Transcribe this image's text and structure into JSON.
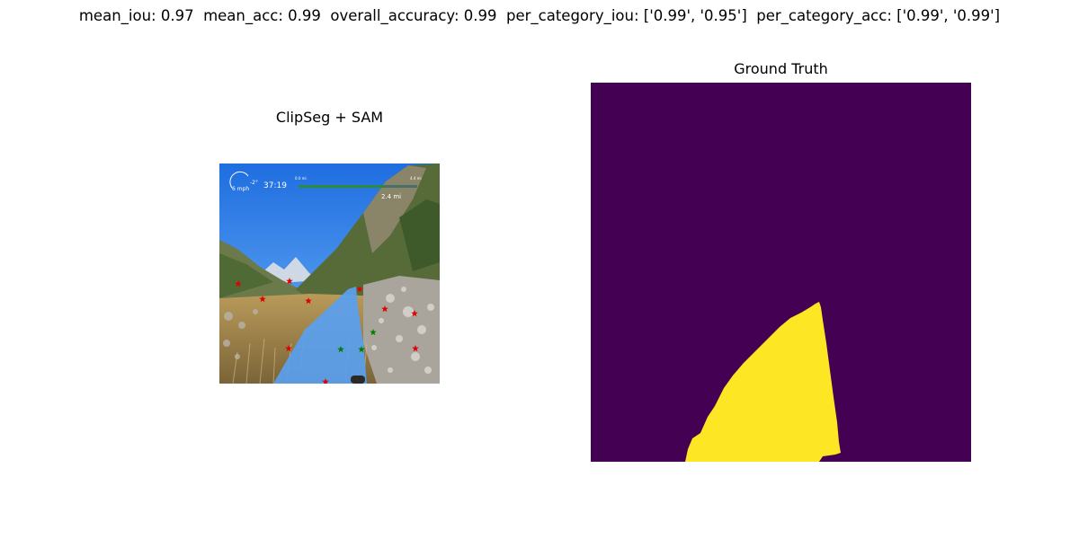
{
  "figure": {
    "suptitle": "mean_iou: 0.97  mean_acc: 0.99  overall_accuracy: 0.99  per_category_iou: ['0.99', '0.95']  per_category_acc: ['0.99', '0.99']"
  },
  "panels": {
    "left": {
      "title": "ClipSeg + SAM",
      "hud": {
        "speed": "6 mph",
        "grade": "-2°",
        "time": "37:19",
        "distance": "2.4 mi",
        "bar_start": "0.0 mi",
        "bar_end": "4.4 mi"
      },
      "colors": {
        "mask": "#5aa0f0",
        "positive_point": "#008000",
        "negative_point": "#e00000"
      }
    },
    "right": {
      "title": "Ground Truth",
      "colors": {
        "background": "#440154",
        "foreground": "#fde725"
      }
    }
  }
}
